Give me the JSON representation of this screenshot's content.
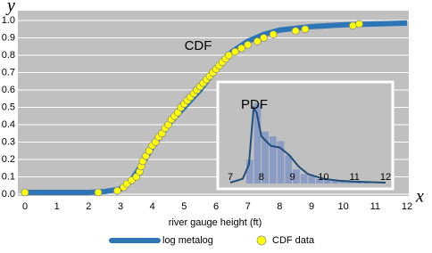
{
  "chart_data": [
    {
      "type": "line",
      "xlabel": "river gauge height (ft)",
      "x_axis_symbol": "x",
      "y_axis_symbol": "y",
      "annotation": "CDF",
      "xlim": [
        0,
        12
      ],
      "xticks": [
        0,
        1,
        2,
        3,
        4,
        5,
        6,
        7,
        8,
        9,
        10,
        11,
        12
      ],
      "ylim": [
        0,
        1
      ],
      "yticks": [
        {
          "value": 0,
          "label": "0.0"
        },
        0.1,
        0.2,
        0.3,
        0.4,
        0.5,
        0.6,
        0.7,
        0.8,
        0.9,
        {
          "value": 1,
          "label": "1.0"
        }
      ],
      "grid": true,
      "legend": "bottom",
      "series": [
        {
          "name": "log metalog",
          "type": "line",
          "color": "#2e75b6",
          "x": [
            0,
            2,
            2.5,
            3,
            3.3,
            3.6,
            4,
            4.5,
            5,
            5.5,
            6,
            6.5,
            7,
            7.5,
            8,
            9,
            10,
            11,
            12
          ],
          "values": [
            0.01,
            0.01,
            0.015,
            0.03,
            0.07,
            0.15,
            0.27,
            0.4,
            0.5,
            0.6,
            0.72,
            0.82,
            0.88,
            0.92,
            0.945,
            0.965,
            0.975,
            0.98,
            0.985
          ]
        },
        {
          "name": "CDF data",
          "type": "scatter",
          "color": "#ffff00",
          "x": [
            0,
            2.3,
            2.9,
            3.1,
            3.2,
            3.35,
            3.5,
            3.6,
            3.65,
            3.7,
            3.8,
            3.9,
            4.0,
            4.1,
            4.2,
            4.3,
            4.4,
            4.5,
            4.6,
            4.7,
            4.8,
            4.9,
            5.0,
            5.1,
            5.2,
            5.3,
            5.4,
            5.5,
            5.6,
            5.7,
            5.8,
            5.9,
            6.0,
            6.1,
            6.2,
            6.3,
            6.4,
            6.6,
            6.8,
            7.0,
            7.3,
            7.5,
            7.8,
            8.5,
            8.8,
            10.3,
            10.5
          ],
          "values": [
            0.01,
            0.01,
            0.02,
            0.04,
            0.06,
            0.08,
            0.1,
            0.13,
            0.16,
            0.19,
            0.22,
            0.25,
            0.28,
            0.3,
            0.33,
            0.35,
            0.38,
            0.4,
            0.43,
            0.45,
            0.47,
            0.5,
            0.52,
            0.54,
            0.56,
            0.58,
            0.6,
            0.62,
            0.64,
            0.66,
            0.68,
            0.7,
            0.72,
            0.74,
            0.76,
            0.78,
            0.8,
            0.82,
            0.84,
            0.86,
            0.88,
            0.9,
            0.92,
            0.94,
            0.95,
            0.97,
            0.98
          ]
        }
      ]
    },
    {
      "type": "histogram",
      "annotation": "PDF",
      "color": "#8a9cc4",
      "bins": [
        7.5,
        7.75,
        8,
        8.25,
        8.5,
        8.75,
        9,
        9.25,
        9.5,
        9.75,
        10,
        10.25,
        10.5,
        10.75,
        11,
        11.25,
        11.5
      ],
      "values": [
        0.25,
        0.85,
        0.55,
        0.5,
        0.45,
        0.3,
        0.15,
        0.1,
        0.08,
        0.05,
        0.04,
        0.03,
        0.02,
        0.02,
        0.01,
        0.01
      ],
      "xlim": [
        7,
        12
      ],
      "xticks": [
        7,
        8,
        9,
        10,
        11,
        12
      ],
      "ylim": [
        0,
        1
      ],
      "curve": {
        "color": "#1f4e79",
        "x": [
          7,
          7.4,
          7.6,
          7.75,
          7.85,
          8,
          8.3,
          8.6,
          8.9,
          9.2,
          9.5,
          10,
          10.5,
          11,
          12
        ],
        "values": [
          0.01,
          0.05,
          0.2,
          0.8,
          0.75,
          0.5,
          0.4,
          0.38,
          0.3,
          0.18,
          0.1,
          0.05,
          0.03,
          0.02,
          0.01
        ]
      }
    }
  ]
}
